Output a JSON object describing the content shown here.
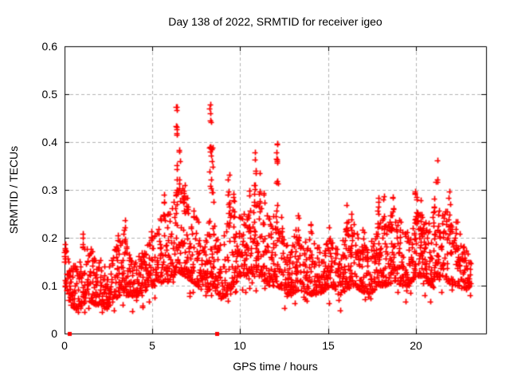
{
  "chart_data": {
    "type": "scatter",
    "title": "Day 138 of 2022, SRMTID for receiver igeo",
    "xlabel": "GPS time / hours",
    "ylabel": "SRMTID / TECUs",
    "xlim": [
      0,
      24
    ],
    "ylim": [
      0,
      0.6
    ],
    "xticks": [
      0,
      5,
      10,
      15,
      20
    ],
    "xtick_labels": [
      "0",
      "5",
      "10",
      "15",
      "20"
    ],
    "yticks": [
      0,
      0.1,
      0.2,
      0.3,
      0.4,
      0.5,
      0.6
    ],
    "ytick_labels": [
      "0",
      "0.1",
      "0.2",
      "0.3",
      "0.4",
      "0.5",
      "0.6"
    ],
    "grid": true,
    "legend_position": "none",
    "marker": "plus",
    "marker_size": 7,
    "marker_color": "#ff0000",
    "grid_color": "#b3b3b3",
    "axis_color": "#000000",
    "background_color": "#ffffff",
    "series_name": "SRMTID",
    "time_range": [
      0.02,
      23.15
    ],
    "epoch_step": 0.04,
    "points_per_epoch_min": 2,
    "points_per_epoch_max": 5,
    "bias_exponent": 1.7,
    "seed": 1380,
    "band_envelope": [
      [
        0.02,
        0.1,
        0.19
      ],
      [
        0.3,
        0.06,
        0.14
      ],
      [
        0.7,
        0.05,
        0.15
      ],
      [
        1.0,
        0.06,
        0.18
      ],
      [
        1.3,
        0.07,
        0.19
      ],
      [
        1.7,
        0.06,
        0.17
      ],
      [
        2.0,
        0.06,
        0.16
      ],
      [
        2.4,
        0.05,
        0.13
      ],
      [
        2.8,
        0.07,
        0.17
      ],
      [
        3.1,
        0.08,
        0.2
      ],
      [
        3.5,
        0.08,
        0.22
      ],
      [
        3.8,
        0.08,
        0.16
      ],
      [
        4.2,
        0.08,
        0.17
      ],
      [
        4.6,
        0.09,
        0.18
      ],
      [
        5.0,
        0.1,
        0.2
      ],
      [
        5.4,
        0.1,
        0.24
      ],
      [
        5.7,
        0.11,
        0.28
      ],
      [
        6.0,
        0.11,
        0.26
      ],
      [
        6.4,
        0.13,
        0.3
      ],
      [
        6.8,
        0.12,
        0.3
      ],
      [
        7.2,
        0.11,
        0.26
      ],
      [
        7.6,
        0.1,
        0.24
      ],
      [
        8.0,
        0.08,
        0.2
      ],
      [
        8.4,
        0.1,
        0.26
      ],
      [
        8.8,
        0.07,
        0.18
      ],
      [
        9.2,
        0.08,
        0.24
      ],
      [
        9.6,
        0.1,
        0.26
      ],
      [
        10.0,
        0.12,
        0.24
      ],
      [
        10.4,
        0.12,
        0.26
      ],
      [
        10.8,
        0.12,
        0.3
      ],
      [
        11.2,
        0.12,
        0.28
      ],
      [
        11.6,
        0.1,
        0.24
      ],
      [
        12.0,
        0.1,
        0.28
      ],
      [
        12.4,
        0.09,
        0.22
      ],
      [
        12.8,
        0.08,
        0.18
      ],
      [
        13.2,
        0.09,
        0.22
      ],
      [
        13.6,
        0.09,
        0.2
      ],
      [
        14.0,
        0.08,
        0.2
      ],
      [
        14.4,
        0.08,
        0.18
      ],
      [
        14.8,
        0.09,
        0.19
      ],
      [
        15.2,
        0.1,
        0.2
      ],
      [
        15.6,
        0.08,
        0.17
      ],
      [
        16.0,
        0.09,
        0.22
      ],
      [
        16.4,
        0.1,
        0.24
      ],
      [
        16.8,
        0.09,
        0.2
      ],
      [
        17.2,
        0.08,
        0.18
      ],
      [
        17.6,
        0.09,
        0.2
      ],
      [
        18.0,
        0.1,
        0.24
      ],
      [
        18.4,
        0.1,
        0.24
      ],
      [
        18.8,
        0.11,
        0.26
      ],
      [
        19.2,
        0.1,
        0.22
      ],
      [
        19.6,
        0.1,
        0.22
      ],
      [
        20.0,
        0.12,
        0.26
      ],
      [
        20.4,
        0.12,
        0.24
      ],
      [
        20.8,
        0.1,
        0.24
      ],
      [
        21.2,
        0.12,
        0.26
      ],
      [
        21.6,
        0.12,
        0.28
      ],
      [
        22.0,
        0.1,
        0.24
      ],
      [
        22.4,
        0.1,
        0.22
      ],
      [
        22.8,
        0.09,
        0.18
      ],
      [
        23.15,
        0.1,
        0.16
      ]
    ],
    "spike_clusters": [
      [
        0.05,
        0.17,
        0.195,
        5
      ],
      [
        1.05,
        0.17,
        0.21,
        4
      ],
      [
        3.0,
        0.17,
        0.215,
        5
      ],
      [
        3.45,
        0.19,
        0.245,
        5
      ],
      [
        5.0,
        0.18,
        0.215,
        4
      ],
      [
        5.65,
        0.24,
        0.3,
        6
      ],
      [
        6.38,
        0.25,
        0.475,
        16
      ],
      [
        6.55,
        0.27,
        0.4,
        7
      ],
      [
        6.78,
        0.27,
        0.34,
        9
      ],
      [
        7.0,
        0.24,
        0.315,
        6
      ],
      [
        7.3,
        0.22,
        0.26,
        4
      ],
      [
        8.3,
        0.3,
        0.515,
        14
      ],
      [
        8.45,
        0.26,
        0.4,
        7
      ],
      [
        9.35,
        0.24,
        0.335,
        9
      ],
      [
        9.6,
        0.22,
        0.295,
        7
      ],
      [
        10.5,
        0.22,
        0.3,
        5
      ],
      [
        10.85,
        0.24,
        0.38,
        9
      ],
      [
        11.1,
        0.23,
        0.345,
        7
      ],
      [
        11.35,
        0.22,
        0.295,
        5
      ],
      [
        12.1,
        0.24,
        0.4,
        11
      ],
      [
        12.35,
        0.19,
        0.265,
        5
      ],
      [
        13.3,
        0.18,
        0.26,
        7
      ],
      [
        14.0,
        0.17,
        0.25,
        5
      ],
      [
        15.1,
        0.17,
        0.235,
        4
      ],
      [
        16.1,
        0.19,
        0.3,
        7
      ],
      [
        16.35,
        0.18,
        0.26,
        5
      ],
      [
        17.0,
        0.17,
        0.245,
        4
      ],
      [
        17.85,
        0.19,
        0.3,
        7
      ],
      [
        18.15,
        0.21,
        0.32,
        7
      ],
      [
        18.7,
        0.21,
        0.3,
        7
      ],
      [
        19.1,
        0.17,
        0.26,
        4
      ],
      [
        20.0,
        0.23,
        0.335,
        9
      ],
      [
        20.3,
        0.19,
        0.28,
        5
      ],
      [
        21.05,
        0.19,
        0.29,
        7
      ],
      [
        21.2,
        0.29,
        0.395,
        4
      ],
      [
        21.9,
        0.21,
        0.3,
        5
      ],
      [
        22.3,
        0.17,
        0.26,
        4
      ]
    ],
    "zero_square_points": [
      [
        0.25,
        0
      ],
      [
        8.65,
        0
      ]
    ],
    "square_size": 5
  }
}
